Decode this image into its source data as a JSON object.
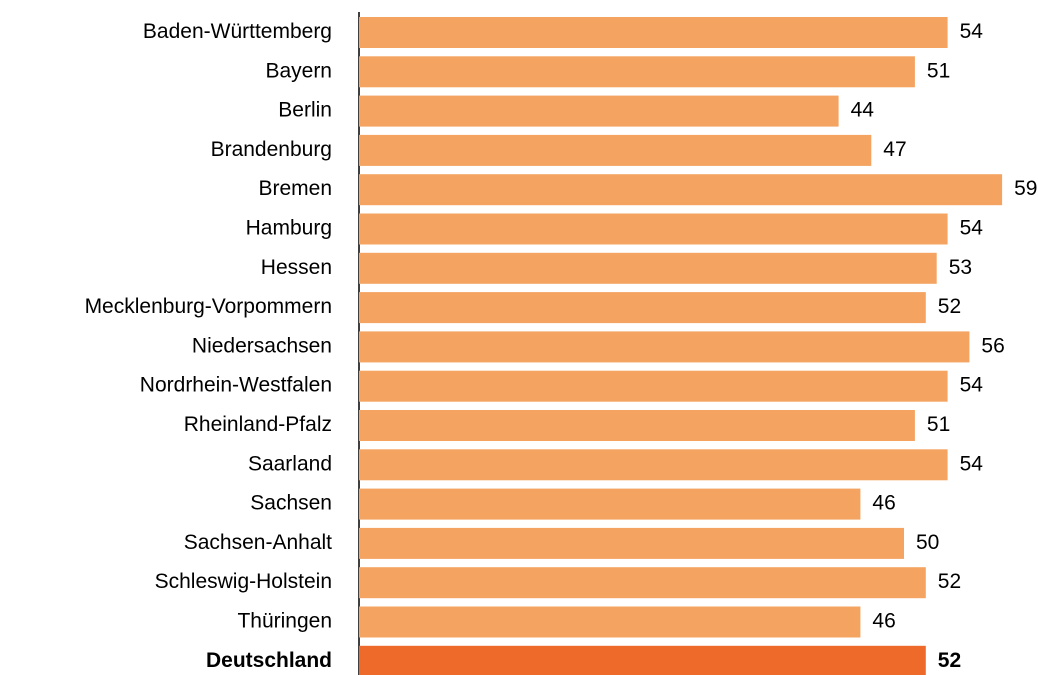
{
  "chart_data": {
    "type": "hbar",
    "categories": [
      "Baden-Württemberg",
      "Bayern",
      "Berlin",
      "Brandenburg",
      "Bremen",
      "Hamburg",
      "Hessen",
      "Mecklenburg-Vorpommern",
      "Niedersachsen",
      "Nordrhein-Westfalen",
      "Rheinland-Pfalz",
      "Saarland",
      "Sachsen",
      "Sachsen-Anhalt",
      "Schleswig-Holstein",
      "Thüringen",
      "Deutschland"
    ],
    "values": [
      54,
      51,
      44,
      47,
      59,
      54,
      53,
      52,
      56,
      54,
      51,
      54,
      46,
      50,
      52,
      46,
      52
    ],
    "colors": [
      "#f4a460",
      "#f4a460",
      "#f4a460",
      "#f4a460",
      "#f4a460",
      "#f4a460",
      "#f4a460",
      "#f4a460",
      "#f4a460",
      "#f4a460",
      "#f4a460",
      "#f4a460",
      "#f4a460",
      "#f4a460",
      "#f4a460",
      "#f4a460",
      "#ee6a2a"
    ],
    "xlim": [
      0,
      60
    ]
  }
}
